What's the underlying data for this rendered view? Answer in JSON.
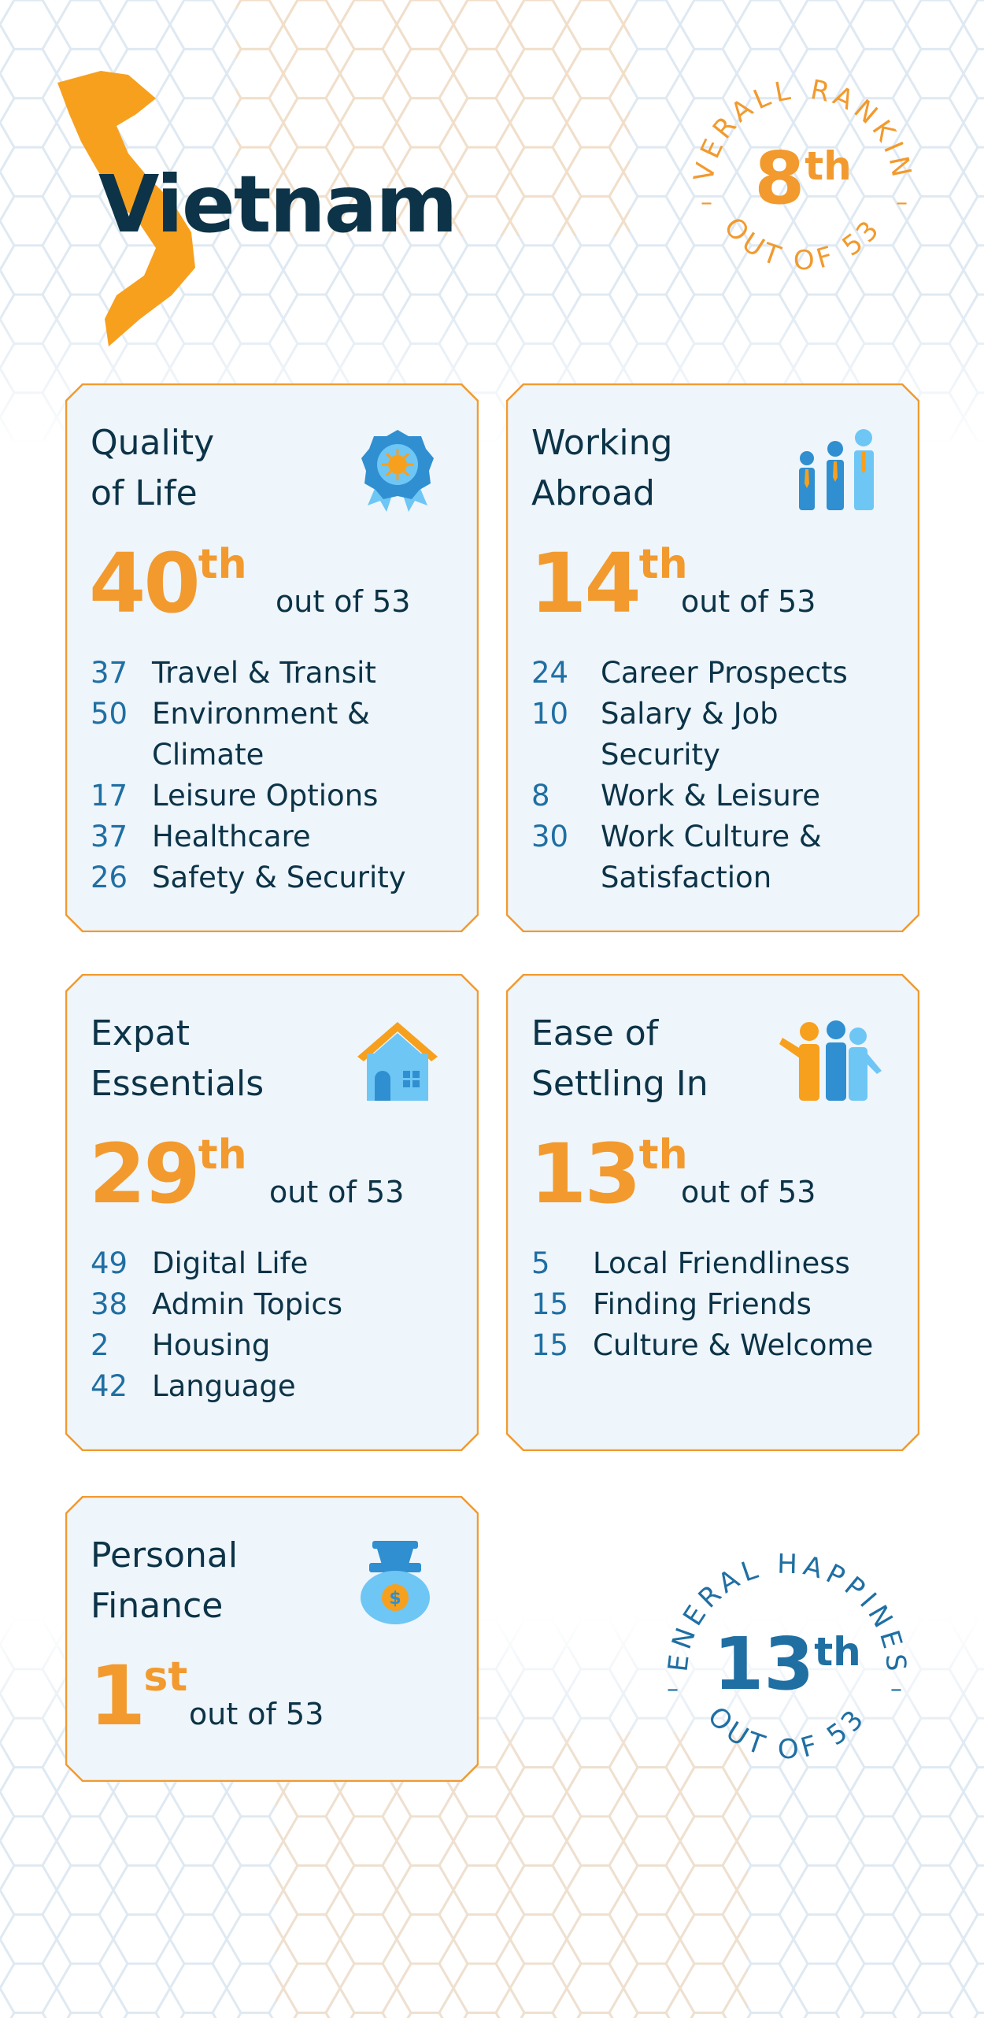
{
  "country": "Vietnam",
  "overall": {
    "arc_top": "OVERALL RANKING",
    "rank": "8",
    "suffix": "th",
    "arc_bottom": "OUT OF 53",
    "color": "#f29a2e"
  },
  "happiness": {
    "arc_top": "GENERAL HAPPINESS",
    "rank": "13",
    "suffix": "th",
    "arc_bottom": "OUT OF 53",
    "color": "#1f6fa3"
  },
  "colors": {
    "accent": "#f29a2e",
    "dark": "#0c3347",
    "blue": "#1f6fa3",
    "light_blue": "#6ec6f5",
    "card_bg": "#eef5fb"
  },
  "cards": {
    "quality": {
      "title": "Quality\nof Life",
      "icon": "award-ribbon-icon",
      "rank": "40",
      "suffix": "th",
      "out_of": "out of 53",
      "items": [
        {
          "n": "37",
          "label": "Travel & Transit"
        },
        {
          "n": "50",
          "label": "Environment & Climate"
        },
        {
          "n": "17",
          "label": "Leisure Options"
        },
        {
          "n": "37",
          "label": "Healthcare"
        },
        {
          "n": "26",
          "label": "Safety & Security"
        }
      ]
    },
    "working": {
      "title": "Working\nAbroad",
      "icon": "business-people-icon",
      "rank": "14",
      "suffix": "th",
      "out_of": "out of 53",
      "items": [
        {
          "n": "24",
          "label": "Career Prospects"
        },
        {
          "n": "10",
          "label": "Salary & Job Security"
        },
        {
          "n": "8",
          "label": "Work & Leisure"
        },
        {
          "n": "30",
          "label": "Work Culture & Satisfaction"
        }
      ]
    },
    "essentials": {
      "title": "Expat\nEssentials",
      "icon": "house-icon",
      "rank": "29",
      "suffix": "th",
      "out_of": "out of 53",
      "items": [
        {
          "n": "49",
          "label": "Digital Life"
        },
        {
          "n": "38",
          "label": "Admin Topics"
        },
        {
          "n": "2",
          "label": "Housing"
        },
        {
          "n": "42",
          "label": "Language"
        }
      ]
    },
    "settling": {
      "title": "Ease of\nSettling In",
      "icon": "waving-people-icon",
      "rank": "13",
      "suffix": "th",
      "out_of": "out of 53",
      "items": [
        {
          "n": "5",
          "label": "Local Friendliness"
        },
        {
          "n": "15",
          "label": "Finding Friends"
        },
        {
          "n": "15",
          "label": "Culture & Welcome"
        }
      ]
    },
    "finance": {
      "title": "Personal\nFinance",
      "icon": "money-bag-icon",
      "rank": "1",
      "suffix": "st",
      "out_of": "out of 53"
    }
  }
}
